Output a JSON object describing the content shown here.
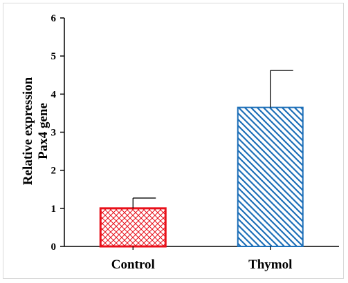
{
  "chart_data": {
    "type": "bar",
    "categories": [
      "Control",
      "Thymol"
    ],
    "values": [
      1.0,
      3.65
    ],
    "error_upper": [
      1.27,
      4.62
    ],
    "ylabel_lines": [
      "Relative expression",
      "Pax4  gene"
    ],
    "xlabel": "",
    "ylim": [
      0,
      6
    ],
    "yticks": [
      0,
      1,
      2,
      3,
      4,
      5,
      6
    ],
    "grid": false,
    "bar_colors": [
      "#e8101a",
      "#1d6fb8"
    ],
    "bar_patterns": [
      "crosshatch",
      "diagonal"
    ]
  }
}
